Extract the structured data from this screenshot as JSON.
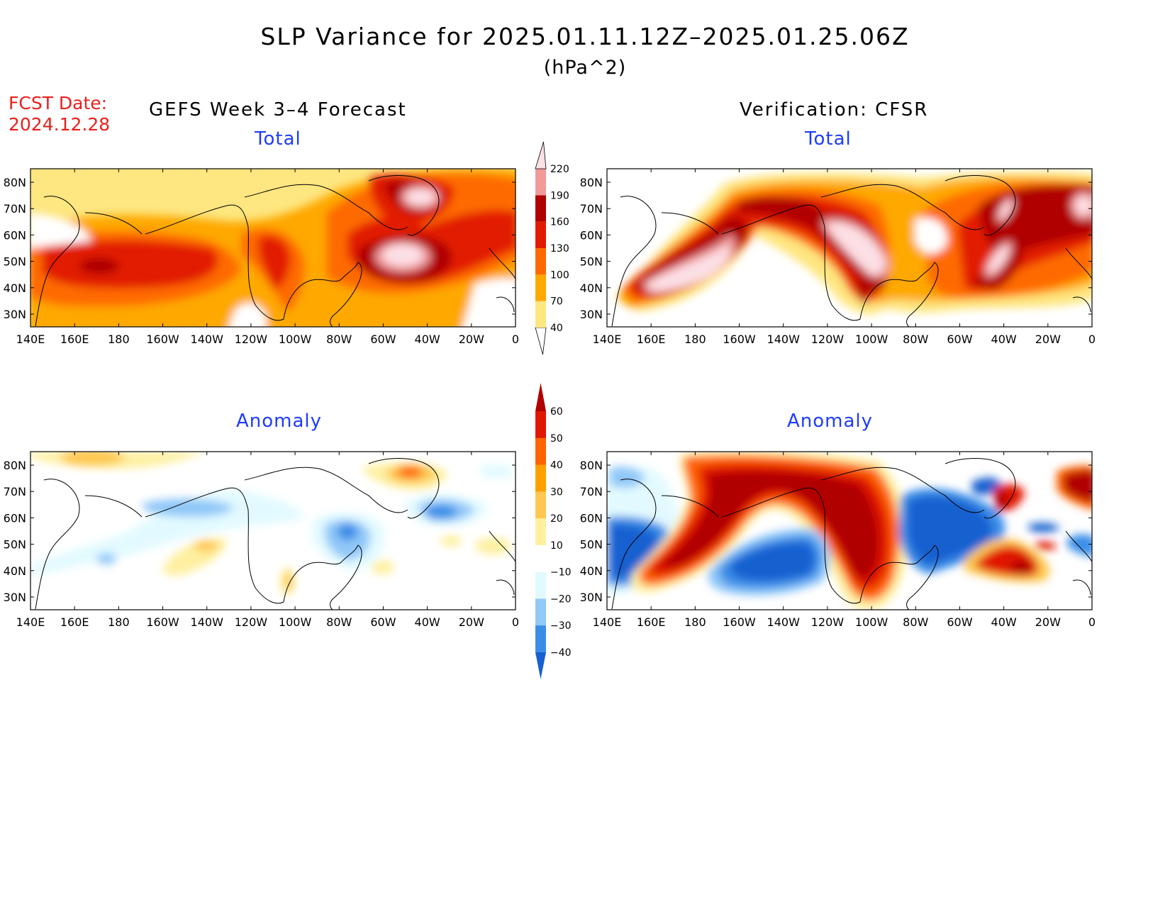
{
  "title": "SLP Variance for 2025.01.11.12Z–2025.01.25.06Z",
  "units": "(hPa^2)",
  "forecast_date": {
    "label": "FCST Date:",
    "value": "2024.12.28"
  },
  "columns": [
    {
      "title": "GEFS Week 3–4 Forecast"
    },
    {
      "title": "Verification: CFSR"
    }
  ],
  "panels": [
    {
      "id": "forecast-total",
      "subtitle": "Total"
    },
    {
      "id": "verif-total",
      "subtitle": "Total"
    },
    {
      "id": "forecast-anomaly",
      "subtitle": "Anomaly"
    },
    {
      "id": "verif-anomaly",
      "subtitle": "Anomaly"
    }
  ],
  "lat_labels": [
    "80N",
    "70N",
    "60N",
    "50N",
    "40N",
    "30N"
  ],
  "lon_labels": [
    "140E",
    "160E",
    "180",
    "160W",
    "140W",
    "120W",
    "100W",
    "80W",
    "60W",
    "40W",
    "20W",
    "0"
  ],
  "total_colorbar": {
    "levels": [
      "40",
      "70",
      "100",
      "130",
      "160",
      "190",
      "220"
    ],
    "colors": [
      "#fee680",
      "#fea800",
      "#fe6a00",
      "#e21b00",
      "#b00000",
      "#f09a9a",
      "#fce0e6"
    ]
  },
  "anomaly_colorbar": {
    "levels": [
      "60",
      "50",
      "40",
      "30",
      "20",
      "10",
      "−10",
      "−20",
      "−30",
      "−40"
    ],
    "colors": [
      "#b00000",
      "#e01800",
      "#fe6400",
      "#fea000",
      "#fec850",
      "#fef0a0",
      "#ffffff",
      "#e2faff",
      "#90c8f8",
      "#3a8ee8",
      "#1660d0"
    ]
  },
  "colors": {
    "title": "#000000",
    "forecast_date": "#e8211c",
    "subtitle": "#1e3cff"
  }
}
